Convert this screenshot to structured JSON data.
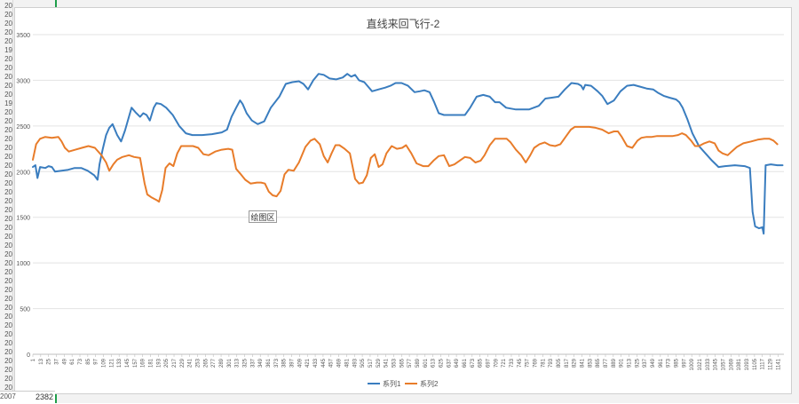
{
  "chart_data": {
    "type": "line",
    "title": "直线来回飞行-2",
    "xlabel": "",
    "ylabel": "",
    "ylim": [
      0,
      3500
    ],
    "y_ticks": [
      0,
      500,
      1000,
      1500,
      2000,
      2500,
      3000,
      3500
    ],
    "x_range": [
      1,
      1150
    ],
    "x_tick_step": 12,
    "grid": "horizontal",
    "legend_position": "bottom",
    "plot_area_label": "绘图区",
    "series": [
      {
        "name": "系列1",
        "color": "#3a7dbf",
        "points": [
          [
            1,
            2050
          ],
          [
            5,
            2070
          ],
          [
            8,
            1930
          ],
          [
            12,
            2050
          ],
          [
            20,
            2040
          ],
          [
            25,
            2060
          ],
          [
            30,
            2050
          ],
          [
            35,
            2000
          ],
          [
            45,
            2010
          ],
          [
            55,
            2020
          ],
          [
            65,
            2040
          ],
          [
            75,
            2040
          ],
          [
            85,
            2010
          ],
          [
            95,
            1960
          ],
          [
            100,
            1910
          ],
          [
            103,
            2080
          ],
          [
            108,
            2250
          ],
          [
            113,
            2400
          ],
          [
            118,
            2480
          ],
          [
            123,
            2520
          ],
          [
            130,
            2400
          ],
          [
            136,
            2330
          ],
          [
            142,
            2450
          ],
          [
            148,
            2600
          ],
          [
            152,
            2700
          ],
          [
            158,
            2650
          ],
          [
            165,
            2600
          ],
          [
            170,
            2640
          ],
          [
            175,
            2620
          ],
          [
            180,
            2560
          ],
          [
            186,
            2700
          ],
          [
            190,
            2750
          ],
          [
            197,
            2740
          ],
          [
            205,
            2700
          ],
          [
            215,
            2620
          ],
          [
            225,
            2500
          ],
          [
            235,
            2420
          ],
          [
            245,
            2400
          ],
          [
            260,
            2400
          ],
          [
            275,
            2410
          ],
          [
            290,
            2430
          ],
          [
            298,
            2460
          ],
          [
            305,
            2600
          ],
          [
            312,
            2700
          ],
          [
            318,
            2780
          ],
          [
            322,
            2740
          ],
          [
            328,
            2640
          ],
          [
            336,
            2560
          ],
          [
            345,
            2520
          ],
          [
            355,
            2550
          ],
          [
            365,
            2700
          ],
          [
            378,
            2820
          ],
          [
            388,
            2960
          ],
          [
            398,
            2980
          ],
          [
            408,
            2990
          ],
          [
            415,
            2960
          ],
          [
            422,
            2900
          ],
          [
            430,
            3000
          ],
          [
            438,
            3070
          ],
          [
            446,
            3060
          ],
          [
            455,
            3020
          ],
          [
            465,
            3010
          ],
          [
            475,
            3030
          ],
          [
            482,
            3070
          ],
          [
            488,
            3040
          ],
          [
            494,
            3060
          ],
          [
            500,
            3000
          ],
          [
            508,
            2980
          ],
          [
            514,
            2930
          ],
          [
            520,
            2880
          ],
          [
            530,
            2900
          ],
          [
            540,
            2920
          ],
          [
            548,
            2940
          ],
          [
            556,
            2970
          ],
          [
            565,
            2970
          ],
          [
            575,
            2940
          ],
          [
            585,
            2870
          ],
          [
            593,
            2880
          ],
          [
            600,
            2890
          ],
          [
            608,
            2870
          ],
          [
            615,
            2760
          ],
          [
            622,
            2640
          ],
          [
            630,
            2620
          ],
          [
            650,
            2620
          ],
          [
            662,
            2620
          ],
          [
            670,
            2700
          ],
          [
            680,
            2820
          ],
          [
            690,
            2840
          ],
          [
            700,
            2820
          ],
          [
            708,
            2760
          ],
          [
            715,
            2760
          ],
          [
            725,
            2700
          ],
          [
            740,
            2680
          ],
          [
            760,
            2680
          ],
          [
            775,
            2720
          ],
          [
            785,
            2800
          ],
          [
            795,
            2810
          ],
          [
            805,
            2820
          ],
          [
            815,
            2900
          ],
          [
            825,
            2970
          ],
          [
            835,
            2960
          ],
          [
            840,
            2940
          ],
          [
            843,
            2900
          ],
          [
            846,
            2950
          ],
          [
            855,
            2940
          ],
          [
            865,
            2880
          ],
          [
            872,
            2830
          ],
          [
            880,
            2740
          ],
          [
            890,
            2780
          ],
          [
            900,
            2880
          ],
          [
            910,
            2940
          ],
          [
            920,
            2950
          ],
          [
            930,
            2930
          ],
          [
            940,
            2910
          ],
          [
            950,
            2900
          ],
          [
            958,
            2860
          ],
          [
            966,
            2830
          ],
          [
            975,
            2810
          ],
          [
            985,
            2790
          ],
          [
            990,
            2760
          ],
          [
            995,
            2700
          ],
          [
            1002,
            2580
          ],
          [
            1010,
            2420
          ],
          [
            1020,
            2280
          ],
          [
            1030,
            2200
          ],
          [
            1040,
            2120
          ],
          [
            1050,
            2050
          ],
          [
            1060,
            2060
          ],
          [
            1075,
            2070
          ],
          [
            1090,
            2060
          ],
          [
            1098,
            2040
          ],
          [
            1102,
            1560
          ],
          [
            1106,
            1400
          ],
          [
            1112,
            1380
          ],
          [
            1117,
            1390
          ],
          [
            1119,
            1320
          ],
          [
            1122,
            2070
          ],
          [
            1130,
            2080
          ],
          [
            1140,
            2070
          ],
          [
            1148,
            2070
          ]
        ]
      },
      {
        "name": "系列2",
        "color": "#e87c2a",
        "points": [
          [
            1,
            2130
          ],
          [
            6,
            2300
          ],
          [
            12,
            2360
          ],
          [
            20,
            2380
          ],
          [
            30,
            2370
          ],
          [
            40,
            2380
          ],
          [
            45,
            2330
          ],
          [
            50,
            2260
          ],
          [
            56,
            2220
          ],
          [
            66,
            2240
          ],
          [
            76,
            2260
          ],
          [
            86,
            2280
          ],
          [
            96,
            2260
          ],
          [
            106,
            2180
          ],
          [
            113,
            2100
          ],
          [
            118,
            2010
          ],
          [
            124,
            2080
          ],
          [
            130,
            2130
          ],
          [
            138,
            2160
          ],
          [
            148,
            2180
          ],
          [
            156,
            2160
          ],
          [
            165,
            2150
          ],
          [
            172,
            1870
          ],
          [
            176,
            1750
          ],
          [
            182,
            1720
          ],
          [
            190,
            1690
          ],
          [
            194,
            1670
          ],
          [
            199,
            1800
          ],
          [
            204,
            2040
          ],
          [
            210,
            2090
          ],
          [
            216,
            2060
          ],
          [
            222,
            2200
          ],
          [
            228,
            2280
          ],
          [
            236,
            2280
          ],
          [
            246,
            2280
          ],
          [
            254,
            2260
          ],
          [
            262,
            2190
          ],
          [
            270,
            2180
          ],
          [
            280,
            2220
          ],
          [
            290,
            2240
          ],
          [
            300,
            2250
          ],
          [
            306,
            2240
          ],
          [
            312,
            2030
          ],
          [
            318,
            1980
          ],
          [
            326,
            1910
          ],
          [
            334,
            1870
          ],
          [
            344,
            1880
          ],
          [
            350,
            1880
          ],
          [
            356,
            1870
          ],
          [
            362,
            1780
          ],
          [
            368,
            1740
          ],
          [
            374,
            1730
          ],
          [
            380,
            1790
          ],
          [
            386,
            1970
          ],
          [
            392,
            2020
          ],
          [
            400,
            2010
          ],
          [
            408,
            2100
          ],
          [
            418,
            2270
          ],
          [
            426,
            2340
          ],
          [
            432,
            2360
          ],
          [
            440,
            2300
          ],
          [
            446,
            2170
          ],
          [
            452,
            2100
          ],
          [
            458,
            2200
          ],
          [
            464,
            2290
          ],
          [
            470,
            2290
          ],
          [
            478,
            2250
          ],
          [
            486,
            2200
          ],
          [
            494,
            1920
          ],
          [
            500,
            1870
          ],
          [
            506,
            1880
          ],
          [
            512,
            1960
          ],
          [
            518,
            2150
          ],
          [
            524,
            2190
          ],
          [
            530,
            2050
          ],
          [
            536,
            2080
          ],
          [
            542,
            2200
          ],
          [
            550,
            2280
          ],
          [
            558,
            2250
          ],
          [
            566,
            2260
          ],
          [
            572,
            2290
          ],
          [
            580,
            2200
          ],
          [
            588,
            2090
          ],
          [
            598,
            2060
          ],
          [
            606,
            2060
          ],
          [
            614,
            2120
          ],
          [
            622,
            2170
          ],
          [
            630,
            2180
          ],
          [
            638,
            2060
          ],
          [
            646,
            2080
          ],
          [
            654,
            2120
          ],
          [
            662,
            2160
          ],
          [
            670,
            2150
          ],
          [
            678,
            2100
          ],
          [
            686,
            2120
          ],
          [
            692,
            2180
          ],
          [
            700,
            2290
          ],
          [
            708,
            2360
          ],
          [
            718,
            2360
          ],
          [
            726,
            2360
          ],
          [
            732,
            2320
          ],
          [
            740,
            2240
          ],
          [
            748,
            2180
          ],
          [
            755,
            2100
          ],
          [
            762,
            2180
          ],
          [
            768,
            2260
          ],
          [
            776,
            2300
          ],
          [
            784,
            2320
          ],
          [
            792,
            2290
          ],
          [
            800,
            2280
          ],
          [
            808,
            2300
          ],
          [
            816,
            2380
          ],
          [
            824,
            2460
          ],
          [
            830,
            2490
          ],
          [
            840,
            2490
          ],
          [
            852,
            2490
          ],
          [
            862,
            2480
          ],
          [
            872,
            2460
          ],
          [
            882,
            2420
          ],
          [
            890,
            2440
          ],
          [
            896,
            2440
          ],
          [
            902,
            2380
          ],
          [
            910,
            2280
          ],
          [
            918,
            2260
          ],
          [
            926,
            2340
          ],
          [
            932,
            2370
          ],
          [
            940,
            2380
          ],
          [
            948,
            2380
          ],
          [
            956,
            2390
          ],
          [
            964,
            2390
          ],
          [
            972,
            2390
          ],
          [
            980,
            2390
          ],
          [
            988,
            2400
          ],
          [
            994,
            2420
          ],
          [
            1000,
            2400
          ],
          [
            1008,
            2340
          ],
          [
            1014,
            2280
          ],
          [
            1020,
            2280
          ],
          [
            1028,
            2310
          ],
          [
            1036,
            2330
          ],
          [
            1044,
            2310
          ],
          [
            1050,
            2230
          ],
          [
            1056,
            2200
          ],
          [
            1064,
            2180
          ],
          [
            1070,
            2220
          ],
          [
            1078,
            2270
          ],
          [
            1088,
            2310
          ],
          [
            1100,
            2330
          ],
          [
            1110,
            2350
          ],
          [
            1120,
            2360
          ],
          [
            1128,
            2360
          ],
          [
            1134,
            2340
          ],
          [
            1140,
            2300
          ]
        ]
      }
    ]
  },
  "sheet": {
    "row_header_fragments": [
      "20",
      "20",
      "20",
      "20",
      "20",
      "19",
      "20",
      "20",
      "20",
      "20",
      "20",
      "19",
      "20",
      "20",
      "20",
      "20",
      "20",
      "20",
      "20",
      "20",
      "20",
      "20",
      "20",
      "20",
      "20",
      "20",
      "20",
      "20",
      "20",
      "20",
      "20",
      "20",
      "20",
      "20",
      "20",
      "20",
      "20",
      "20",
      "20",
      "20",
      "20",
      "20",
      "20",
      "20",
      "20"
    ],
    "bottom_row_number": "2007",
    "bottom_cell_value": "2382"
  }
}
